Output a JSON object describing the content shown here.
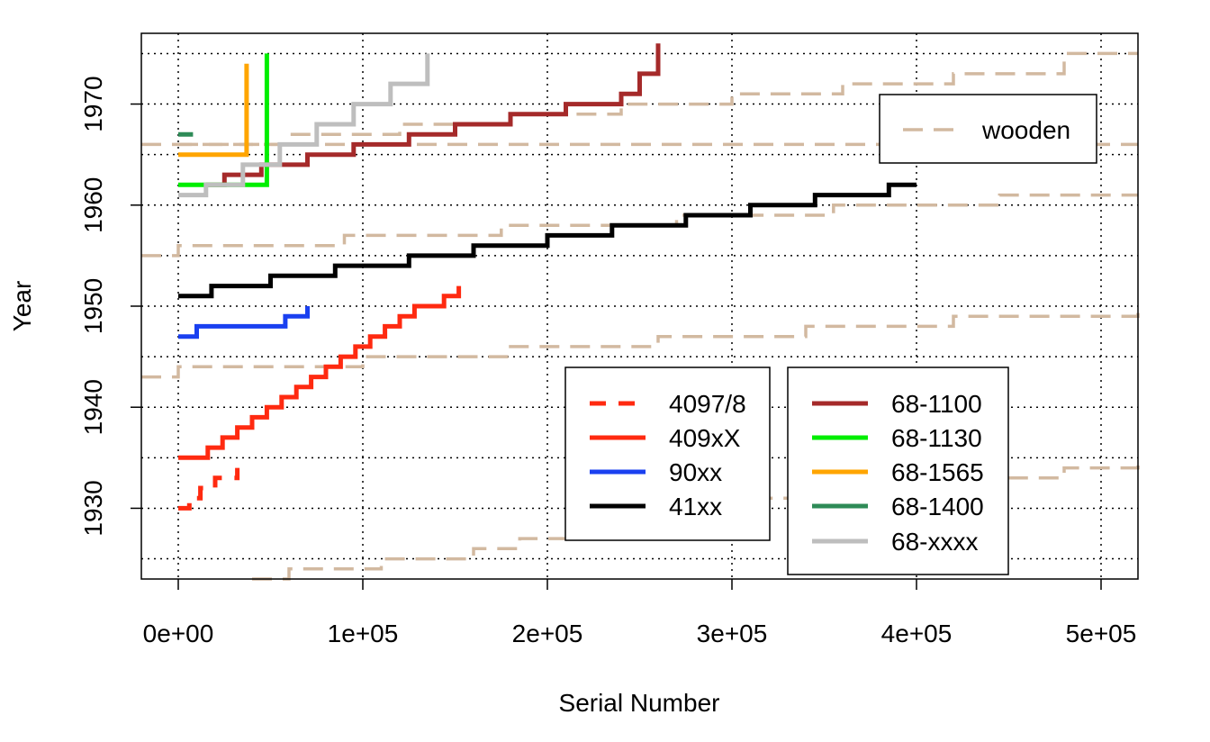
{
  "chart_data": {
    "type": "line",
    "xlabel": "Serial Number",
    "ylabel": "Year",
    "xlim": [
      -20000,
      520000
    ],
    "ylim": [
      1923,
      1977
    ],
    "xticks": [
      0,
      100000,
      200000,
      300000,
      400000,
      500000
    ],
    "xtick_labels": [
      "0e+00",
      "1e+05",
      "2e+05",
      "3e+05",
      "4e+05",
      "5e+05"
    ],
    "yticks": [
      1930,
      1940,
      1950,
      1960,
      1970
    ],
    "ytick_labels": [
      "1930",
      "1940",
      "1950",
      "1960",
      "1970"
    ],
    "grid": true,
    "legend_wooden": {
      "placement": "top-right",
      "entries": [
        {
          "name": "wooden",
          "color": "#D2B9A0",
          "style": "dashed"
        }
      ]
    },
    "legend_main": {
      "placement": "bottom-center",
      "columns": [
        [
          {
            "name": "4097/8",
            "color": "#FF2A10",
            "style": "dashed"
          },
          {
            "name": "409xX",
            "color": "#FF2A10",
            "style": "solid"
          },
          {
            "name": "90xx",
            "color": "#1A40F0",
            "style": "solid"
          },
          {
            "name": "41xx",
            "color": "#000000",
            "style": "solid"
          }
        ],
        [
          {
            "name": "68-1100",
            "color": "#A52A2A",
            "style": "solid"
          },
          {
            "name": "68-1130",
            "color": "#00EE00",
            "style": "solid"
          },
          {
            "name": "68-1565",
            "color": "#FFA500",
            "style": "solid"
          },
          {
            "name": "68-1400",
            "color": "#2E8B57",
            "style": "solid"
          },
          {
            "name": "68-xxxx",
            "color": "#BEBEBE",
            "style": "solid"
          }
        ]
      ]
    },
    "series": [
      {
        "name": "wooden",
        "color": "#D2B9A0",
        "style": "dashed",
        "x": [
          -20000,
          0,
          520000
        ],
        "y": [
          1966,
          1966,
          1966
        ]
      },
      {
        "name": "wooden",
        "color": "#D2B9A0",
        "style": "dashed",
        "x": [
          -20000,
          0,
          20000,
          60000,
          100000,
          140000,
          180000,
          220000,
          260000,
          300000,
          340000,
          380000,
          420000,
          460000,
          520000
        ],
        "y": [
          1943,
          1944,
          1944,
          1944,
          1945,
          1945,
          1946,
          1946,
          1947,
          1947,
          1948,
          1948,
          1949,
          1949,
          1950
        ]
      },
      {
        "name": "wooden",
        "color": "#D2B9A0",
        "style": "dashed",
        "x": [
          -20000,
          0,
          90000,
          175000,
          270000,
          355000,
          445000,
          520000
        ],
        "y": [
          1955,
          1956,
          1957,
          1958,
          1959,
          1960,
          1961,
          1961
        ]
      },
      {
        "name": "wooden",
        "color": "#D2B9A0",
        "style": "dashed",
        "x": [
          0,
          60000,
          120000,
          180000,
          240000,
          300000,
          360000,
          420000,
          480000,
          520000
        ],
        "y": [
          1966,
          1967,
          1968,
          1969,
          1970,
          1971,
          1972,
          1973,
          1975,
          1975
        ]
      },
      {
        "name": "wooden",
        "color": "#D2B9A0",
        "style": "dashed",
        "x": [
          40000,
          60000,
          110000,
          160000,
          185000,
          205000,
          220000,
          240000,
          270000,
          300000,
          360000,
          410000,
          480000,
          520000
        ],
        "y": [
          1923,
          1924,
          1925,
          1926,
          1927,
          1927,
          1928,
          1929,
          1930,
          1931,
          1932,
          1933,
          1934,
          1935
        ]
      },
      {
        "name": "4097/8",
        "color": "#FF2A10",
        "style": "dashed",
        "x": [
          0,
          3000,
          6000,
          9000,
          12000,
          16000,
          20000,
          26000,
          32000
        ],
        "y": [
          1930,
          1930,
          1931,
          1931,
          1932,
          1932,
          1933,
          1933,
          1934
        ]
      },
      {
        "name": "409xX",
        "color": "#FF2A10",
        "style": "solid",
        "x": [
          0,
          8000,
          16000,
          24000,
          32000,
          40000,
          48000,
          56000,
          64000,
          72000,
          80000,
          88000,
          96000,
          104000,
          112000,
          120000,
          128000,
          136000,
          144000,
          152000
        ],
        "y": [
          1935,
          1935,
          1936,
          1937,
          1938,
          1939,
          1940,
          1941,
          1942,
          1943,
          1944,
          1945,
          1946,
          1947,
          1948,
          1949,
          1950,
          1950,
          1951,
          1952
        ]
      },
      {
        "name": "90xx",
        "color": "#1A40F0",
        "style": "solid",
        "x": [
          0,
          10000,
          34000,
          58000,
          70000
        ],
        "y": [
          1947,
          1948,
          1948,
          1949,
          1950
        ]
      },
      {
        "name": "41xx",
        "color": "#000000",
        "style": "solid",
        "x": [
          0,
          18000,
          50000,
          85000,
          125000,
          160000,
          200000,
          235000,
          275000,
          310000,
          345000,
          385000,
          400000
        ],
        "y": [
          1951,
          1952,
          1953,
          1954,
          1955,
          1956,
          1957,
          1958,
          1959,
          1960,
          1961,
          1962,
          1962
        ]
      },
      {
        "name": "68-1100",
        "color": "#A52A2A",
        "style": "solid",
        "x": [
          15000,
          25000,
          45000,
          70000,
          95000,
          125000,
          150000,
          180000,
          210000,
          240000,
          250000,
          260000
        ],
        "y": [
          1962,
          1963,
          1964,
          1965,
          1966,
          1967,
          1968,
          1969,
          1970,
          1971,
          1973,
          1976
        ]
      },
      {
        "name": "68-1130",
        "color": "#00EE00",
        "style": "solid",
        "x": [
          0,
          48000
        ],
        "y": [
          1962,
          1975
        ]
      },
      {
        "name": "68-1565",
        "color": "#FFA500",
        "style": "solid",
        "x": [
          0,
          37000
        ],
        "y": [
          1965,
          1974
        ]
      },
      {
        "name": "68-1400",
        "color": "#2E8B57",
        "style": "solid",
        "x": [
          0,
          8000
        ],
        "y": [
          1967,
          1967
        ]
      },
      {
        "name": "68-xxxx",
        "color": "#BEBEBE",
        "style": "solid",
        "x": [
          0,
          15000,
          35000,
          55000,
          75000,
          95000,
          115000,
          135000
        ],
        "y": [
          1961,
          1962,
          1964,
          1966,
          1968,
          1970,
          1972,
          1975
        ]
      }
    ]
  }
}
